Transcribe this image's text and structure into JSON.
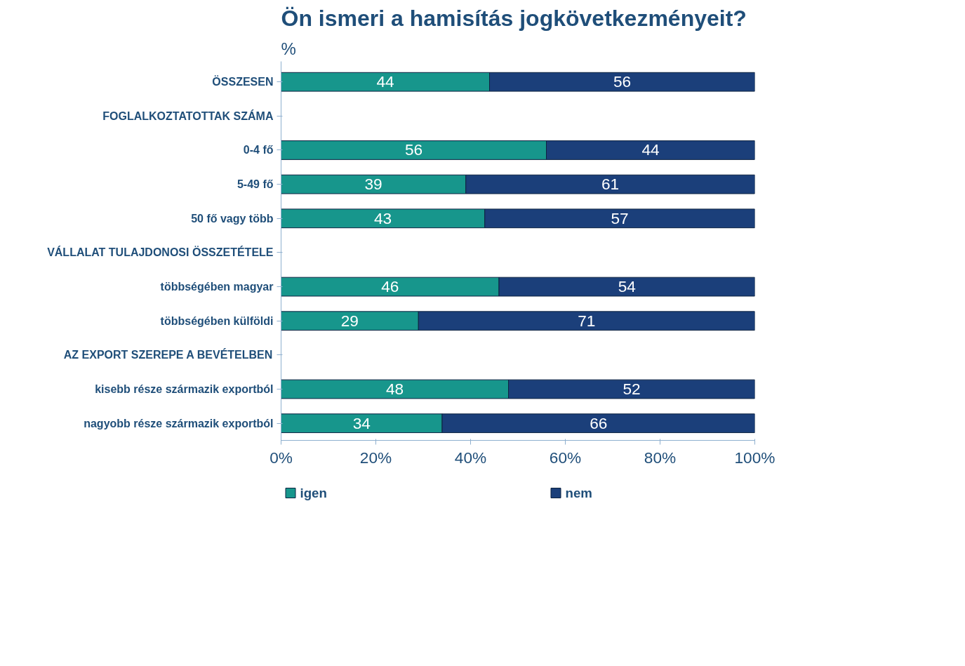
{
  "chart_data": {
    "type": "bar",
    "orientation": "horizontal",
    "stacked": true,
    "title": "Ön ismeri a hamisítás jogkövetkezményeit?",
    "subtitle": "%",
    "categories": [
      "ÖSSZESEN",
      "FOGLALKOZTATOTTAK SZÁMA",
      "0-4 fő",
      "5-49 fő",
      "50 fő vagy több",
      "VÁLLALAT TULAJDONOSI ÖSSZETÉTELE",
      "többségében magyar",
      "többségében külföldi",
      "AZ EXPORT SZEREPE A BEVÉTELBEN",
      "kisebb része származik exportból",
      "nagyobb része származik exportból"
    ],
    "series": [
      {
        "name": "igen",
        "color": "#17968c",
        "values": [
          44,
          null,
          56,
          39,
          43,
          null,
          46,
          29,
          null,
          48,
          34
        ]
      },
      {
        "name": "nem",
        "color": "#1b3f7a",
        "values": [
          56,
          null,
          44,
          61,
          57,
          null,
          54,
          71,
          null,
          52,
          66
        ]
      }
    ],
    "xlim": [
      0,
      100
    ],
    "xticks": [
      {
        "value": 0,
        "label": "0%"
      },
      {
        "value": 20,
        "label": "20%"
      },
      {
        "value": 40,
        "label": "40%"
      },
      {
        "value": 60,
        "label": "60%"
      },
      {
        "value": 80,
        "label": "80%"
      },
      {
        "value": 100,
        "label": "100%"
      }
    ],
    "data_labels": true,
    "grid": false,
    "legend": "bottom"
  }
}
